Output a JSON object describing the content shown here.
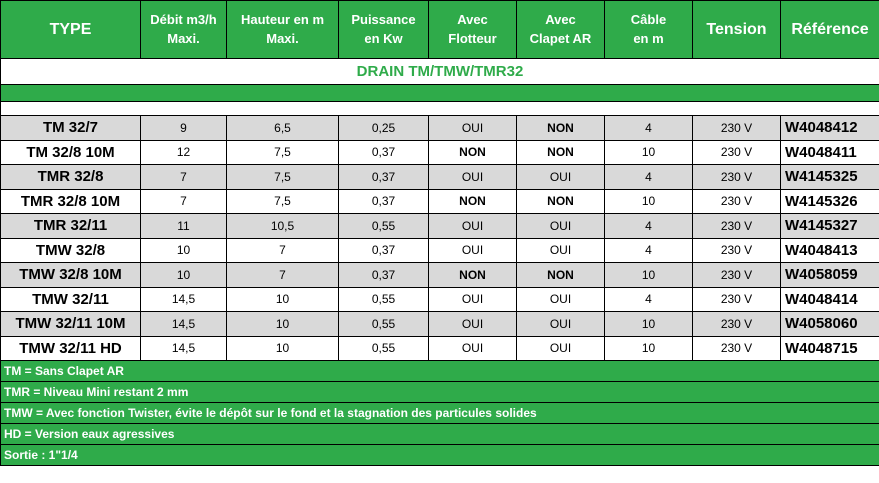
{
  "headers": {
    "type": "TYPE",
    "debit": [
      "Débit m3/h",
      "Maxi."
    ],
    "hauteur": [
      "Hauteur en m",
      "Maxi."
    ],
    "puissance": [
      "Puissance",
      "en Kw"
    ],
    "flotteur": [
      "Avec",
      "Flotteur"
    ],
    "clapet": [
      "Avec",
      "Clapet AR"
    ],
    "cable": [
      "Câble",
      "en m"
    ],
    "tension": "Tension",
    "reference": "Référence"
  },
  "section_title": "DRAIN TM/TMW/TMR32",
  "rows": [
    {
      "type": "TM 32/7",
      "debit": "9",
      "hauteur": "6,5",
      "puissance": "0,25",
      "flotteur": "OUI",
      "clapet": "NON",
      "cable": "4",
      "tension": "230 V",
      "reference": "W4048412"
    },
    {
      "type": "TM 32/8 10M",
      "debit": "12",
      "hauteur": "7,5",
      "puissance": "0,37",
      "flotteur": "NON",
      "clapet": "NON",
      "cable": "10",
      "tension": "230 V",
      "reference": "W4048411"
    },
    {
      "type": "TMR 32/8",
      "debit": "7",
      "hauteur": "7,5",
      "puissance": "0,37",
      "flotteur": "OUI",
      "clapet": "OUI",
      "cable": "4",
      "tension": "230 V",
      "reference": "W4145325"
    },
    {
      "type": "TMR 32/8 10M",
      "debit": "7",
      "hauteur": "7,5",
      "puissance": "0,37",
      "flotteur": "NON",
      "clapet": "NON",
      "cable": "10",
      "tension": "230 V",
      "reference": "W4145326"
    },
    {
      "type": "TMR 32/11",
      "debit": "11",
      "hauteur": "10,5",
      "puissance": "0,55",
      "flotteur": "OUI",
      "clapet": "OUI",
      "cable": "4",
      "tension": "230 V",
      "reference": "W4145327"
    },
    {
      "type": "TMW 32/8",
      "debit": "10",
      "hauteur": "7",
      "puissance": "0,37",
      "flotteur": "OUI",
      "clapet": "OUI",
      "cable": "4",
      "tension": "230 V",
      "reference": "W4048413"
    },
    {
      "type": "TMW 32/8 10M",
      "debit": "10",
      "hauteur": "7",
      "puissance": "0,37",
      "flotteur": "NON",
      "clapet": "NON",
      "cable": "10",
      "tension": "230 V",
      "reference": "W4058059"
    },
    {
      "type": "TMW 32/11",
      "debit": "14,5",
      "hauteur": "10",
      "puissance": "0,55",
      "flotteur": "OUI",
      "clapet": "OUI",
      "cable": "4",
      "tension": "230 V",
      "reference": "W4048414"
    },
    {
      "type": "TMW 32/11 10M",
      "debit": "14,5",
      "hauteur": "10",
      "puissance": "0,55",
      "flotteur": "OUI",
      "clapet": "OUI",
      "cable": "10",
      "tension": "230 V",
      "reference": "W4058060"
    },
    {
      "type": "TMW 32/11 HD",
      "debit": "14,5",
      "hauteur": "10",
      "puissance": "0,55",
      "flotteur": "OUI",
      "clapet": "OUI",
      "cable": "10",
      "tension": "230 V",
      "reference": "W4048715"
    }
  ],
  "notes": [
    "TM = Sans Clapet AR",
    "TMR = Niveau Mini restant 2 mm",
    "TMW = Avec fonction Twister, évite le dépôt sur le fond et la stagnation des particules solides",
    "HD = Version eaux agressives",
    "Sortie : 1\"1/4"
  ],
  "colors": {
    "accent_green": "#2fab4a",
    "row_shade": "#d9d9d9",
    "header_text": "#ffffff"
  }
}
